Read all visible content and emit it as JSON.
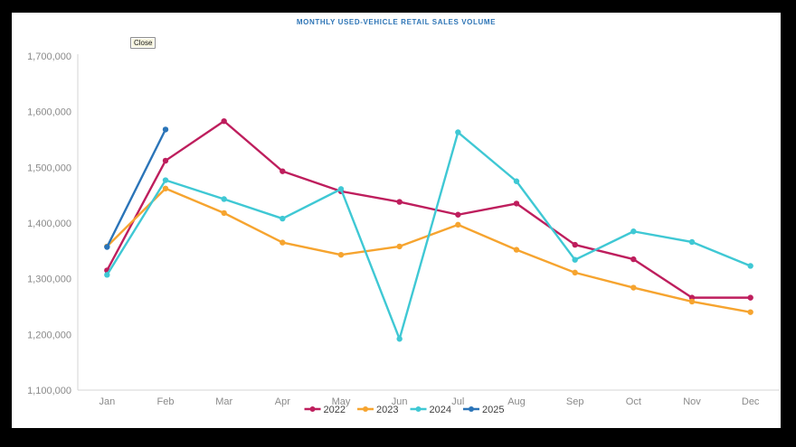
{
  "window": {
    "close_button_label": "Close"
  },
  "chart_data": {
    "type": "line",
    "title": "MONTHLY USED-VEHICLE RETAIL SALES VOLUME",
    "categories": [
      "Jan",
      "Feb",
      "Mar",
      "Apr",
      "May",
      "Jun",
      "Jul",
      "Aug",
      "Sep",
      "Oct",
      "Nov",
      "Dec"
    ],
    "series": [
      {
        "name": "2022",
        "color": "#be1e5d",
        "values": [
          1315000,
          1512000,
          1583000,
          1493000,
          1457000,
          1438000,
          1415000,
          1435000,
          1361000,
          1335000,
          1266000,
          1266000
        ]
      },
      {
        "name": "2023",
        "color": "#f6a42f",
        "values": [
          1358000,
          1462000,
          1418000,
          1365000,
          1343000,
          1358000,
          1397000,
          1352000,
          1311000,
          1284000,
          1259000,
          1240000
        ]
      },
      {
        "name": "2024",
        "color": "#3fc8d4",
        "values": [
          1307000,
          1477000,
          1443000,
          1408000,
          1461000,
          1192000,
          1563000,
          1475000,
          1334000,
          1385000,
          1366000,
          1323000
        ]
      },
      {
        "name": "2025",
        "color": "#2a74b8",
        "values": [
          1357000,
          1568000,
          null,
          null,
          null,
          null,
          null,
          null,
          null,
          null,
          null,
          null
        ]
      }
    ],
    "ylim": [
      1100000,
      1700000
    ],
    "ytick_step": 100000,
    "ytick_labels": [
      "1,100,000",
      "1,200,000",
      "1,300,000",
      "1,400,000",
      "1,500,000",
      "1,600,000",
      "1,700,000"
    ],
    "xlabel": "",
    "ylabel": "",
    "grid": false,
    "legend_position": "bottom"
  },
  "style": {
    "title_color": "#2e75b6",
    "axis_text_color": "#8a8a8a",
    "axis_line_color": "#d6d6d6",
    "legend_text_color": "#3f3f3f",
    "panel_color": "#ffffff",
    "frame_color": "#000000"
  }
}
